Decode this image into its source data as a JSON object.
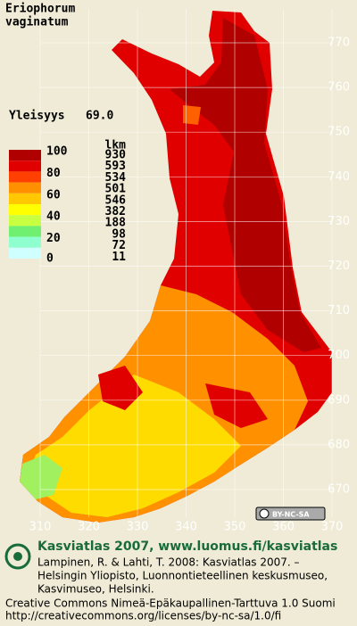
{
  "title": [
    "Eriophorum",
    "vaginatum"
  ],
  "frequency_label": "Yleisyys",
  "frequency": "69.0",
  "legend": {
    "scale_labels": [
      "100",
      "80",
      "60",
      "40",
      "20",
      "0"
    ],
    "count_header": "lkm",
    "counts": [
      "930",
      "593",
      "534",
      "501",
      "546",
      "382",
      "188",
      "98",
      "72",
      "11"
    ],
    "colors": [
      "#b00000",
      "#e00000",
      "#ff4000",
      "#ff9000",
      "#ffc800",
      "#ffff00",
      "#c8ff40",
      "#70f070",
      "#90ffd0",
      "#d0ffff"
    ]
  },
  "grid": {
    "northing": [
      "770",
      "760",
      "750",
      "740",
      "730",
      "720",
      "710",
      "700",
      "690",
      "680",
      "670"
    ],
    "easting": [
      "310",
      "320",
      "330",
      "340",
      "350",
      "360",
      "370"
    ]
  },
  "license_badge": "BY-NC-SA",
  "footer": {
    "title": "Kasviatlas 2007, www.luomus.fi/kasviatlas",
    "citation": [
      "Lampinen, R. & Lahti, T. 2008: Kasviatlas 2007. –",
      "Helsingin Yliopisto, Luonnontieteellinen keskusmuseo,",
      "Kasvimuseo, Helsinki."
    ],
    "license": [
      "Creative Commons Nimeä-Epäkaupallinen-Tarttuva 1.0 Suomi",
      "http://creativecommons.org/licenses/by-nc-sa/1.0/fi"
    ]
  }
}
